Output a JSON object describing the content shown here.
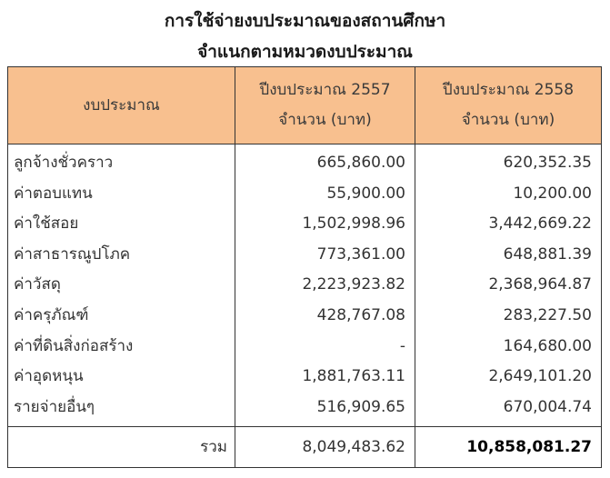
{
  "title_line1": "การใช้จ่ายงบประมาณของสถานศึกษา",
  "title_line2": "จำแนกตามหมวดงบประมาณ",
  "columns": {
    "name": "งบประมาณ",
    "year_a_line1": "ปีงบประมาณ 2557",
    "year_a_line2": "จำนวน (บาท)",
    "year_b_line1": "ปีงบประมาณ 2558",
    "year_b_line2": "จำนวน (บาท)"
  },
  "rows": [
    {
      "name": "ลูกจ้างชั่วคราว",
      "a": "665,860.00",
      "b": "620,352.35"
    },
    {
      "name": "ค่าตอบแทน",
      "a": "55,900.00",
      "b": "10,200.00"
    },
    {
      "name": "ค่าใช้สอย",
      "a": "1,502,998.96",
      "b": "3,442,669.22"
    },
    {
      "name": "ค่าสาธารณูปโภค",
      "a": "773,361.00",
      "b": "648,881.39"
    },
    {
      "name": "ค่าวัสดุ",
      "a": "2,223,923.82",
      "b": "2,368,964.87"
    },
    {
      "name": "ค่าครุภัณฑ์",
      "a": "428,767.08",
      "b": "283,227.50"
    },
    {
      "name": "ค่าที่ดินสิ่งก่อสร้าง",
      "a": "-",
      "b": "164,680.00"
    },
    {
      "name": "ค่าอุดหนุน",
      "a": "1,881,763.11",
      "b": "2,649,101.20"
    },
    {
      "name": "รายจ่ายอื่นๆ",
      "a": "516,909.65",
      "b": "670,004.74"
    }
  ],
  "total": {
    "label": "รวม",
    "a": "8,049,483.62",
    "b": "10,858,081.27"
  }
}
